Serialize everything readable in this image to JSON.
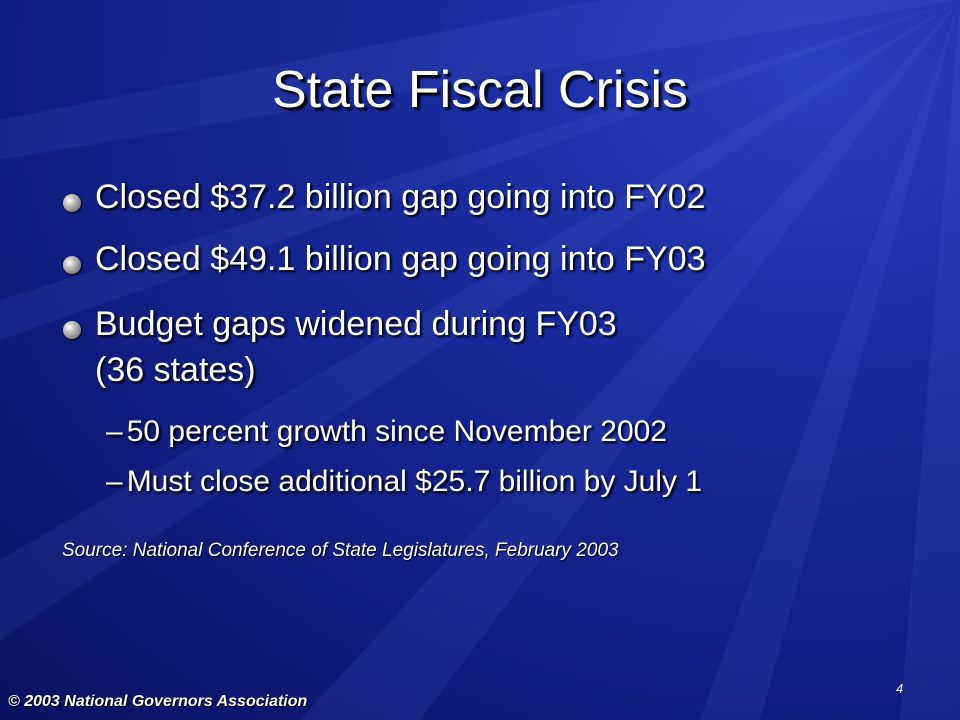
{
  "slide": {
    "title": "State Fiscal Crisis",
    "bullets": [
      {
        "lines": [
          "Closed $37.2 billion gap going into FY02"
        ]
      },
      {
        "lines": [
          "Closed $49.1 billion gap going into FY03"
        ]
      },
      {
        "lines": [
          "Budget gaps widened during FY03",
          "(36 states)"
        ]
      }
    ],
    "sub_bullets": [
      {
        "marker": "–",
        "text": "50 percent growth since November 2002"
      },
      {
        "marker": "–",
        "text": "Must close additional $25.7 billion by July 1"
      }
    ],
    "source": "Source: National Conference of State Legislatures, February 2003",
    "footer": "© 2003 National Governors Association",
    "page_number": 4
  }
}
